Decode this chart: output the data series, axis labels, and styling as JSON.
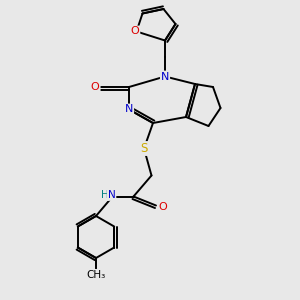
{
  "bg_color": "#e8e8e8",
  "colors": {
    "C": "#000000",
    "N": "#0000cc",
    "O": "#dd0000",
    "S": "#ccaa00",
    "H": "#008080"
  },
  "lw": 1.4
}
